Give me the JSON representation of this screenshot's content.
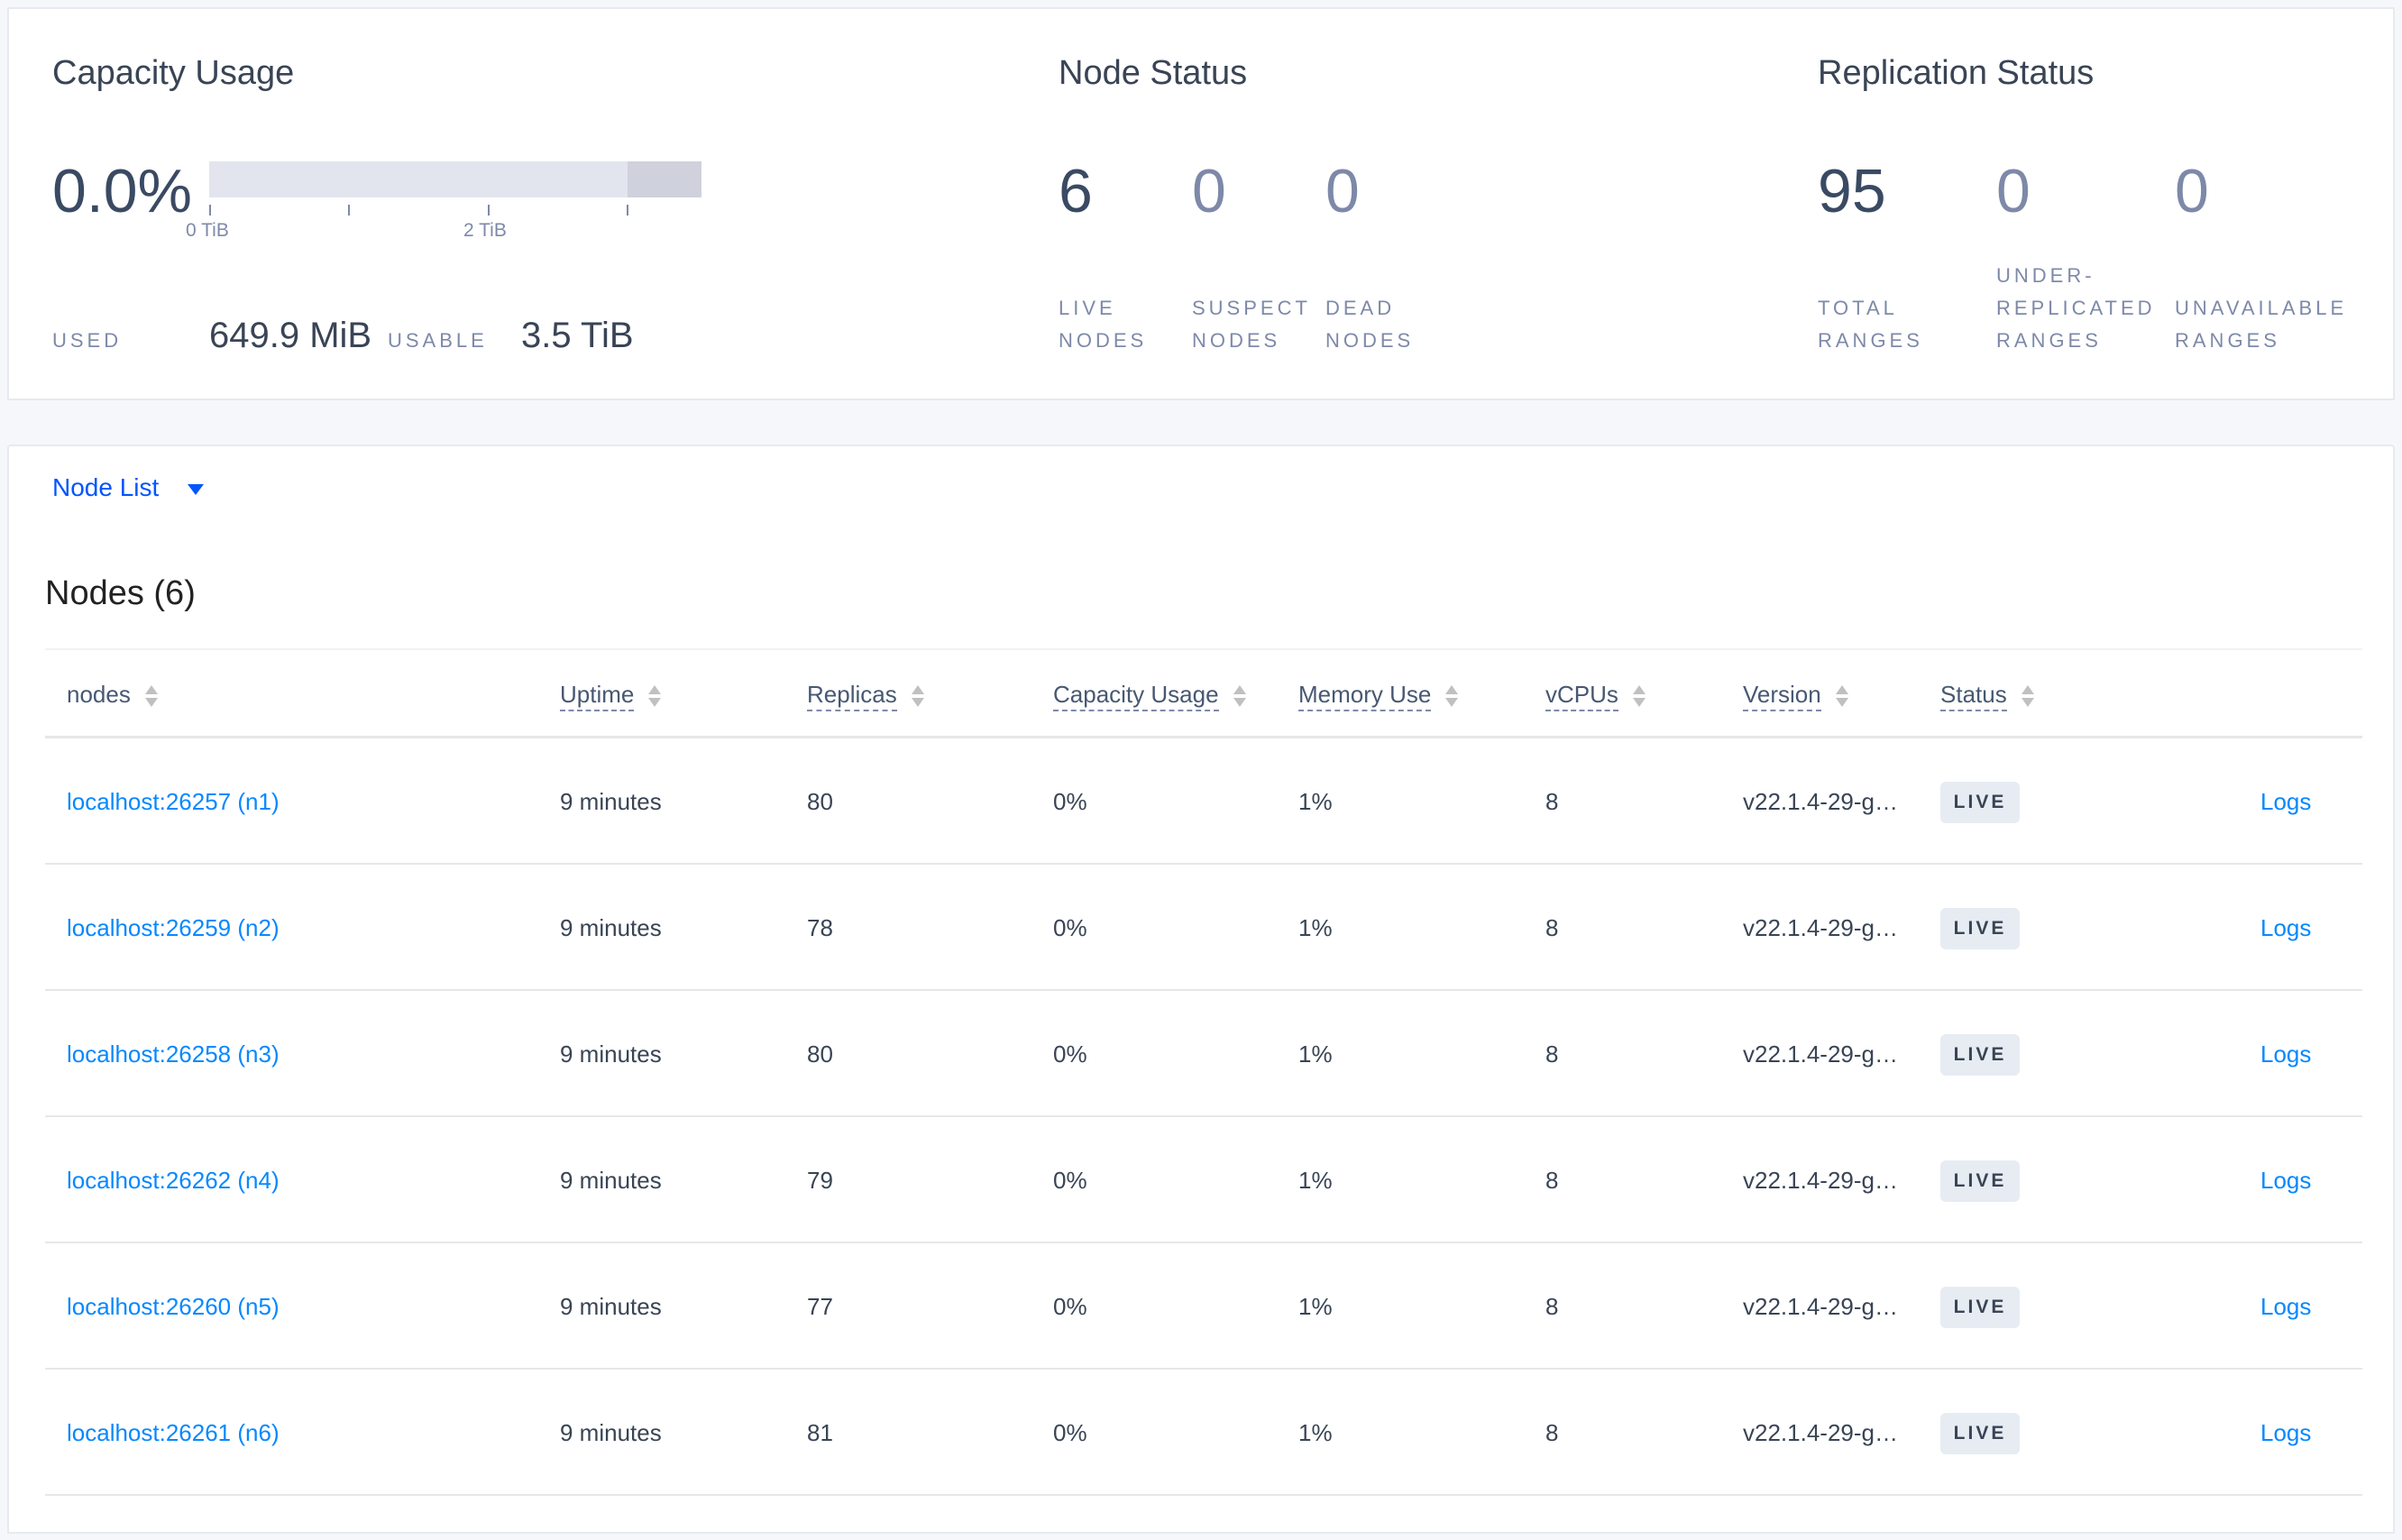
{
  "capacity": {
    "title": "Capacity Usage",
    "percent": "0.0%",
    "ticks": [
      "0 TiB",
      "2 TiB"
    ],
    "used_label": "USED",
    "used_value": "649.9 MiB",
    "usable_label": "USABLE",
    "usable_value": "3.5 TiB",
    "used_fraction": 0.0
  },
  "node_status": {
    "title": "Node Status",
    "stats": [
      {
        "value": "6",
        "l1": "LIVE",
        "l2": "NODES"
      },
      {
        "value": "0",
        "l1": "SUSPECT",
        "l2": "NODES"
      },
      {
        "value": "0",
        "l1": "DEAD",
        "l2": "NODES"
      }
    ]
  },
  "replication": {
    "title": "Replication Status",
    "stats": [
      {
        "value": "95",
        "l0": "",
        "l1": "TOTAL",
        "l2": "RANGES"
      },
      {
        "value": "0",
        "l0": "UNDER-",
        "l1": "REPLICATED",
        "l2": "RANGES"
      },
      {
        "value": "0",
        "l0": "",
        "l1": "UNAVAILABLE",
        "l2": "RANGES"
      }
    ]
  },
  "view_selector": {
    "label": "Node List"
  },
  "table": {
    "title": "Nodes (6)",
    "columns": [
      "nodes",
      "Uptime",
      "Replicas",
      "Capacity Usage",
      "Memory Use",
      "vCPUs",
      "Version",
      "Status"
    ],
    "rows": [
      {
        "node": "localhost:26257 (n1)",
        "uptime": "9 minutes",
        "replicas": "80",
        "capacity": "0%",
        "memory": "1%",
        "vcpus": "8",
        "version": "v22.1.4-29-g…",
        "status": "LIVE",
        "logs": "Logs"
      },
      {
        "node": "localhost:26259 (n2)",
        "uptime": "9 minutes",
        "replicas": "78",
        "capacity": "0%",
        "memory": "1%",
        "vcpus": "8",
        "version": "v22.1.4-29-g…",
        "status": "LIVE",
        "logs": "Logs"
      },
      {
        "node": "localhost:26258 (n3)",
        "uptime": "9 minutes",
        "replicas": "80",
        "capacity": "0%",
        "memory": "1%",
        "vcpus": "8",
        "version": "v22.1.4-29-g…",
        "status": "LIVE",
        "logs": "Logs"
      },
      {
        "node": "localhost:26262 (n4)",
        "uptime": "9 minutes",
        "replicas": "79",
        "capacity": "0%",
        "memory": "1%",
        "vcpus": "8",
        "version": "v22.1.4-29-g…",
        "status": "LIVE",
        "logs": "Logs"
      },
      {
        "node": "localhost:26260 (n5)",
        "uptime": "9 minutes",
        "replicas": "77",
        "capacity": "0%",
        "memory": "1%",
        "vcpus": "8",
        "version": "v22.1.4-29-g…",
        "status": "LIVE",
        "logs": "Logs"
      },
      {
        "node": "localhost:26261 (n6)",
        "uptime": "9 minutes",
        "replicas": "81",
        "capacity": "0%",
        "memory": "1%",
        "vcpus": "8",
        "version": "v22.1.4-29-g…",
        "status": "LIVE",
        "logs": "Logs"
      }
    ]
  },
  "colors": {
    "link": "#0788ff",
    "selector": "#0055ff",
    "text": "#394455",
    "muted": "#7e89a9"
  }
}
